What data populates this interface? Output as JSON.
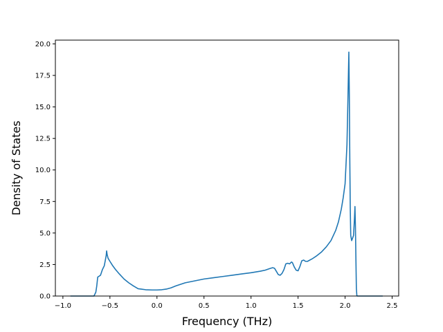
{
  "chart_data": {
    "type": "line",
    "title": "",
    "xlabel": "Frequency (THz)",
    "ylabel": "Density of States",
    "xlim": [
      -1.08,
      2.57
    ],
    "ylim": [
      0,
      20.3
    ],
    "xticks": [
      -1.0,
      -0.5,
      0.0,
      0.5,
      1.0,
      1.5,
      2.0,
      2.5
    ],
    "xtick_labels": [
      "−1.0",
      "−0.5",
      "0.0",
      "0.5",
      "1.0",
      "1.5",
      "2.0",
      "2.5"
    ],
    "yticks": [
      0.0,
      2.5,
      5.0,
      7.5,
      10.0,
      12.5,
      15.0,
      17.5,
      20.0
    ],
    "ytick_labels": [
      "0.0",
      "2.5",
      "5.0",
      "7.5",
      "10.0",
      "12.5",
      "15.0",
      "17.5",
      "20.0"
    ],
    "grid": false,
    "legend": "none",
    "line_color": "#1f77b4",
    "series": [
      {
        "x": [
          -0.92,
          -0.67,
          -0.65,
          -0.64,
          -0.63,
          -0.62,
          -0.6,
          -0.58,
          -0.56,
          -0.55,
          -0.54,
          -0.535,
          -0.53,
          -0.52,
          -0.5,
          -0.47,
          -0.44,
          -0.4,
          -0.35,
          -0.3,
          -0.25,
          -0.2,
          -0.17,
          -0.12,
          -0.05,
          0.0,
          0.05,
          0.1,
          0.15,
          0.2,
          0.3,
          0.4,
          0.5,
          0.6,
          0.7,
          0.8,
          0.9,
          1.0,
          1.1,
          1.15,
          1.2,
          1.23,
          1.25,
          1.27,
          1.29,
          1.31,
          1.33,
          1.35,
          1.37,
          1.39,
          1.41,
          1.43,
          1.44,
          1.46,
          1.48,
          1.5,
          1.52,
          1.54,
          1.56,
          1.58,
          1.6,
          1.65,
          1.7,
          1.75,
          1.8,
          1.85,
          1.9,
          1.93,
          1.96,
          1.98,
          2.0,
          2.02,
          2.03,
          2.04,
          2.045,
          2.05,
          2.055,
          2.06,
          2.07,
          2.08,
          2.09,
          2.1,
          2.105,
          2.11,
          2.115,
          2.12,
          2.125,
          2.13,
          2.2,
          2.4
        ],
        "y": [
          0.0,
          0.0,
          0.3,
          0.8,
          1.5,
          1.55,
          1.65,
          2.1,
          2.4,
          2.8,
          3.2,
          3.58,
          3.3,
          3.0,
          2.75,
          2.4,
          2.1,
          1.75,
          1.35,
          1.05,
          0.8,
          0.58,
          0.55,
          0.5,
          0.48,
          0.48,
          0.5,
          0.55,
          0.65,
          0.8,
          1.05,
          1.2,
          1.35,
          1.45,
          1.55,
          1.65,
          1.75,
          1.85,
          1.97,
          2.05,
          2.18,
          2.25,
          2.2,
          1.95,
          1.7,
          1.65,
          1.8,
          2.1,
          2.55,
          2.6,
          2.55,
          2.7,
          2.65,
          2.3,
          2.05,
          2.0,
          2.35,
          2.8,
          2.85,
          2.75,
          2.75,
          2.95,
          3.2,
          3.5,
          3.9,
          4.4,
          5.2,
          5.9,
          6.9,
          7.8,
          8.9,
          12.0,
          15.5,
          19.35,
          16.0,
          11.0,
          7.0,
          4.8,
          4.4,
          4.6,
          4.8,
          6.2,
          7.1,
          5.5,
          3.0,
          0.6,
          0.05,
          0.0,
          0.0,
          0.0
        ]
      }
    ]
  }
}
